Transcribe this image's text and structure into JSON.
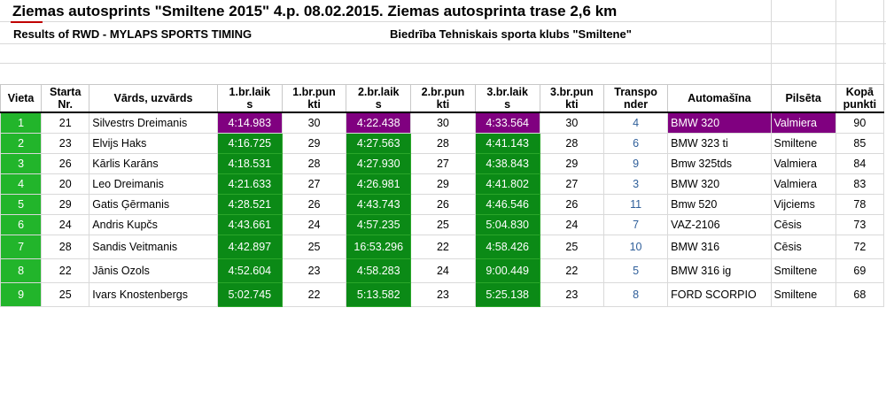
{
  "header": {
    "title": "Ziemas autosprints \"Smiltene 2015\" 4.p. 08.02.2015. Ziemas autosprinta trase 2,6 km",
    "results_label": "Results of RWD - MYLAPS SPORTS TIMING",
    "organizer": "Biedrība Tehniskais sporta klubs \"Smiltene\""
  },
  "columns": [
    "Vieta",
    "Starta Nr.",
    "Vārds, uzvārds",
    "1.br.laiks",
    "1.br.punkti",
    "2.br.laiks",
    "2.br.punkti",
    "3.br.laiks",
    "3.br.punkti",
    "Transponder",
    "Automašīna",
    "Pilsēta",
    "Kopā punkti"
  ],
  "column_display": [
    "Vieta",
    "Starta\nNr.",
    "Vārds, uzvārds",
    "1.br.laik\ns",
    "1.br.pun\nkti",
    "2.br.laik\ns",
    "2.br.pun\nkti",
    "3.br.laik\ns",
    "3.br.pun\nkti",
    "Transpo\nnder",
    "Automašīna",
    "Pilsēta",
    "Kopā\npunkti"
  ],
  "rows": [
    {
      "place": "1",
      "start": "21",
      "name": "Silvestrs Dreimanis",
      "t1": "4:14.983",
      "p1": "30",
      "t2": "4:22.438",
      "p2": "30",
      "t3": "4:33.564",
      "p3": "30",
      "transponder": "4",
      "car": "BMW 320",
      "city": "Valmiera",
      "total": "90"
    },
    {
      "place": "2",
      "start": "23",
      "name": "Elvijs Haks",
      "t1": "4:16.725",
      "p1": "29",
      "t2": "4:27.563",
      "p2": "28",
      "t3": "4:41.143",
      "p3": "28",
      "transponder": "6",
      "car": "BMW 323 ti",
      "city": "Smiltene",
      "total": "85"
    },
    {
      "place": "3",
      "start": "26",
      "name": "Kārlis Karāns",
      "t1": "4:18.531",
      "p1": "28",
      "t2": "4:27.930",
      "p2": "27",
      "t3": "4:38.843",
      "p3": "29",
      "transponder": "9",
      "car": "Bmw 325tds",
      "city": "Valmiera",
      "total": "84"
    },
    {
      "place": "4",
      "start": "20",
      "name": "Leo Dreimanis",
      "t1": "4:21.633",
      "p1": "27",
      "t2": "4:26.981",
      "p2": "29",
      "t3": "4:41.802",
      "p3": "27",
      "transponder": "3",
      "car": "BMW 320",
      "city": "Valmiera",
      "total": "83"
    },
    {
      "place": "5",
      "start": "29",
      "name": "Gatis Ģērmanis",
      "t1": "4:28.521",
      "p1": "26",
      "t2": "4:43.743",
      "p2": "26",
      "t3": "4:46.546",
      "p3": "26",
      "transponder": "11",
      "car": "Bmw 520",
      "city": "Vijciems",
      "total": "78"
    },
    {
      "place": "6",
      "start": "24",
      "name": "Andris Kupčs",
      "t1": "4:43.661",
      "p1": "24",
      "t2": "4:57.235",
      "p2": "25",
      "t3": "5:04.830",
      "p3": "24",
      "transponder": "7",
      "car": "VAZ-2106",
      "city": "Cēsis",
      "total": "73"
    },
    {
      "place": "7",
      "start": "28",
      "name": "Sandis Veitmanis",
      "t1": "4:42.897",
      "p1": "25",
      "t2": "16:53.296",
      "p2": "22",
      "t3": "4:58.426",
      "p3": "25",
      "transponder": "10",
      "car": "BMW 316",
      "city": "Cēsis",
      "total": "72"
    },
    {
      "place": "8",
      "start": "22",
      "name": "Jānis Ozols",
      "t1": "4:52.604",
      "p1": "23",
      "t2": "4:58.283",
      "p2": "24",
      "t3": "9:00.449",
      "p3": "22",
      "transponder": "5",
      "car": "BMW 316 ig",
      "city": "Smiltene",
      "total": "69"
    },
    {
      "place": "9",
      "start": "25",
      "name": "Ivars Knostenbergs",
      "t1": "5:02.745",
      "p1": "22",
      "t2": "5:13.582",
      "p2": "23",
      "t3": "5:25.138",
      "p3": "23",
      "transponder": "8",
      "car": "FORD SCORPIO",
      "city": "Smiltene",
      "total": "68"
    }
  ],
  "colors": {
    "green_cell": "#0b8a16",
    "rank_cell": "#22b52b",
    "best_time": "#800080",
    "transponder_text": "#2f5f9a",
    "title_accent": "#c00000"
  }
}
